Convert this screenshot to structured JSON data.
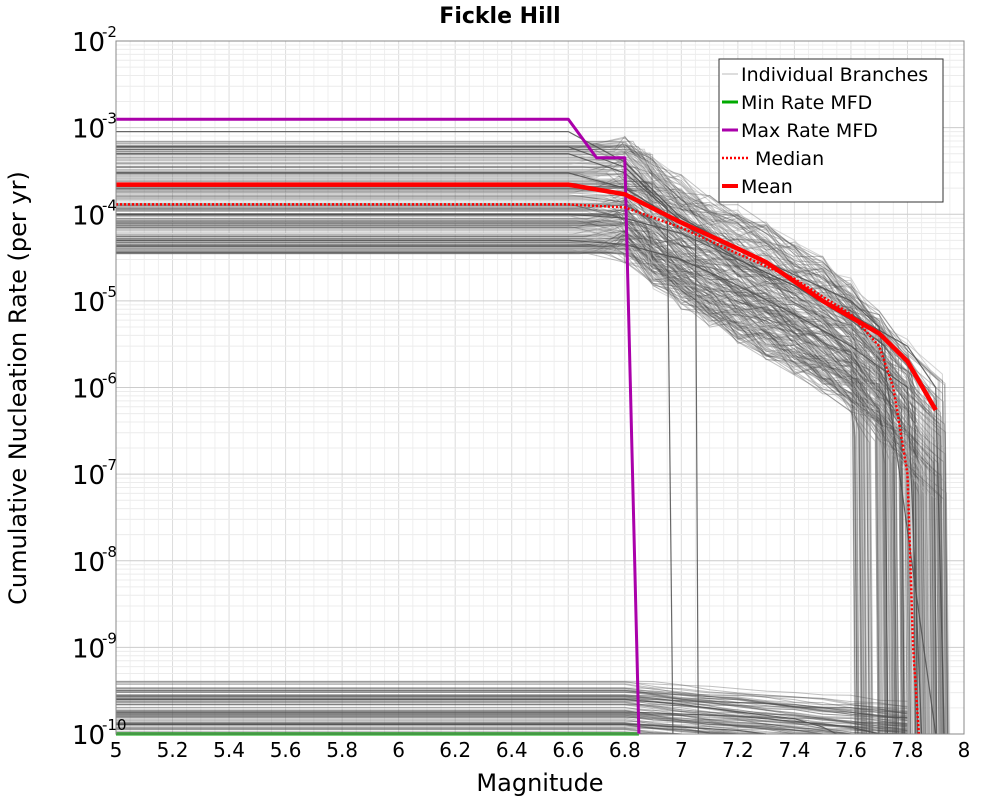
{
  "chart_data": {
    "type": "line",
    "title": "Fickle Hill",
    "xlabel": "Magnitude",
    "ylabel": "Cumulative Nucleation Rate (per yr)",
    "xlim": [
      5,
      8
    ],
    "ylim": [
      1e-10,
      0.01
    ],
    "yscale": "log",
    "grid": true,
    "x_ticks": [
      "5",
      "5.2",
      "5.4",
      "5.6",
      "5.8",
      "6",
      "6.2",
      "6.4",
      "6.6",
      "6.8",
      "7",
      "7.2",
      "7.4",
      "7.6",
      "7.8",
      "8"
    ],
    "y_ticks": [
      {
        "base": "10",
        "exp": "-10"
      },
      {
        "base": "10",
        "exp": "-9"
      },
      {
        "base": "10",
        "exp": "-8"
      },
      {
        "base": "10",
        "exp": "-7"
      },
      {
        "base": "10",
        "exp": "-6"
      },
      {
        "base": "10",
        "exp": "-5"
      },
      {
        "base": "10",
        "exp": "-4"
      },
      {
        "base": "10",
        "exp": "-3"
      },
      {
        "base": "10",
        "exp": "-2"
      }
    ],
    "legend_position": "top-right",
    "series": [
      {
        "name": "Individual Branches",
        "color": "#4d4d4d",
        "style": "thin-solid",
        "representative": [
          {
            "x": [
              5,
              6.6,
              6.8,
              7.0,
              7.2,
              7.4,
              7.6,
              7.7,
              7.9
            ],
            "y": [
              0.0009,
              0.0009,
              0.0004,
              9e-05,
              4e-05,
              2e-05,
              1e-05,
              5e-06,
              1e-10
            ]
          },
          {
            "x": [
              5,
              6.6,
              6.8,
              6.95,
              6.97
            ],
            "y": [
              0.0006,
              0.0006,
              0.00035,
              0.00012,
              1e-10
            ]
          },
          {
            "x": [
              5,
              6.6,
              6.8,
              7.05,
              7.06
            ],
            "y": [
              0.0005,
              0.0005,
              0.0003,
              6e-05,
              1e-10
            ]
          },
          {
            "x": [
              5,
              6.6,
              6.8,
              7.0,
              7.2,
              7.4,
              7.6,
              7.72,
              7.73
            ],
            "y": [
              0.0003,
              0.0003,
              0.0002,
              8e-05,
              3e-05,
              1.5e-05,
              6e-06,
              3e-06,
              1e-10
            ]
          },
          {
            "x": [
              5,
              6.6,
              6.8,
              7.0,
              7.2,
              7.4,
              7.6,
              7.8,
              7.9,
              7.93
            ],
            "y": [
              0.0001,
              0.0001,
              9e-05,
              6e-05,
              3e-05,
              1.5e-05,
              7e-06,
              3e-06,
              1e-06,
              1e-10
            ]
          },
          {
            "x": [
              5,
              6.6,
              6.8,
              7.0,
              7.2,
              7.4,
              7.6,
              7.8,
              7.85
            ],
            "y": [
              5e-05,
              5e-05,
              4.5e-05,
              3e-05,
              1.5e-05,
              7e-06,
              3e-06,
              1e-06,
              1e-10
            ]
          },
          {
            "x": [
              5,
              6.8,
              7.0,
              7.2,
              7.4,
              7.5,
              7.55
            ],
            "y": [
              2.5e-10,
              2.5e-10,
              2.2e-10,
              1.8e-10,
              1.5e-10,
              1.2e-10,
              1e-10
            ]
          },
          {
            "x": [
              5,
              6.8,
              7.0,
              7.2,
              7.4,
              7.6,
              7.7
            ],
            "y": [
              1.8e-10,
              1.8e-10,
              1.7e-10,
              1.6e-10,
              1.4e-10,
              1.2e-10,
              1e-10
            ]
          },
          {
            "x": [
              5,
              6.8,
              7.0,
              7.2,
              7.3
            ],
            "y": [
              1.3e-10,
              1.3e-10,
              1.2e-10,
              1.1e-10,
              1e-10
            ]
          }
        ]
      },
      {
        "name": "Min Rate MFD",
        "color": "#00aa00",
        "style": "solid",
        "x": [
          5,
          6.85
        ],
        "y": [
          1e-10,
          1e-10
        ]
      },
      {
        "name": "Max Rate MFD",
        "color": "#aa00aa",
        "style": "solid",
        "x": [
          5,
          6.6,
          6.7,
          6.8,
          6.85
        ],
        "y": [
          0.00125,
          0.00125,
          0.00045,
          0.00045,
          1e-10
        ]
      },
      {
        "name": "Median",
        "color": "#ff0000",
        "style": "dotted",
        "x": [
          5,
          6.6,
          6.8,
          7.0,
          7.2,
          7.4,
          7.6,
          7.7,
          7.75,
          7.8,
          7.82,
          7.84
        ],
        "y": [
          0.00013,
          0.00013,
          0.00012,
          7e-05,
          3.5e-05,
          1.8e-05,
          7e-06,
          3e-06,
          1e-06,
          1e-07,
          1e-09,
          1e-10
        ]
      },
      {
        "name": "Mean",
        "color": "#ff0000",
        "style": "thick-solid",
        "x": [
          5,
          6.6,
          6.8,
          7.0,
          7.2,
          7.3,
          7.5,
          7.7,
          7.8,
          7.9
        ],
        "y": [
          0.00022,
          0.00022,
          0.00017,
          8e-05,
          4e-05,
          2.8e-05,
          1e-05,
          4.2e-06,
          2e-06,
          5.5e-07
        ]
      }
    ]
  }
}
